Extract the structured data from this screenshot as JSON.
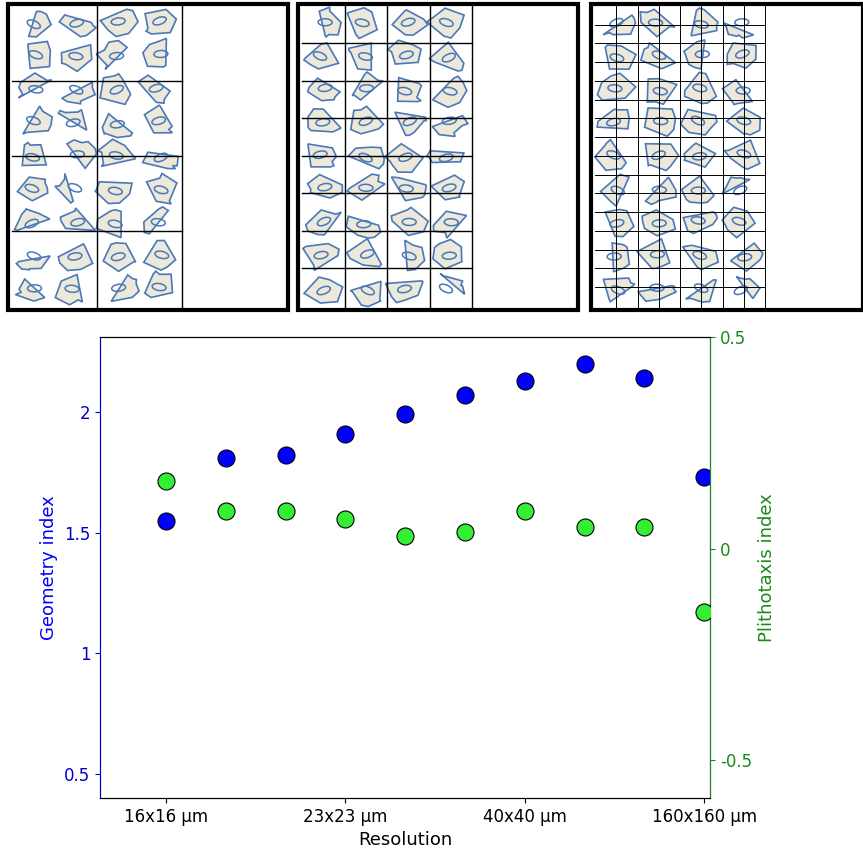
{
  "chart_data": {
    "type": "scatter",
    "xlabel": "Resolution",
    "categories": [
      "16x16 μm",
      null,
      null,
      "23x23 μm",
      null,
      null,
      "40x40 μm",
      null,
      null,
      "160x160 μm"
    ],
    "series": [
      {
        "name": "Geometry index",
        "color": "#0000ff",
        "marker": "o",
        "values": [
          1.55,
          1.81,
          1.82,
          1.91,
          1.99,
          2.07,
          2.13,
          2.2,
          2.14,
          1.73
        ]
      },
      {
        "name": "Plithotaxis index",
        "color": "#33ee33",
        "marker": "o",
        "axis": "y2",
        "values": [
          0.16,
          0.09,
          0.09,
          0.07,
          0.03,
          0.04,
          0.09,
          0.05,
          0.05,
          -0.15
        ]
      }
    ],
    "ylim": [
      0.4,
      2.31
    ],
    "yticks": [
      0.5,
      1,
      1.5,
      2
    ],
    "y2lim": [
      -0.59,
      0.5
    ],
    "y2ticks": [
      -0.5,
      0,
      0.5
    ]
  }
}
